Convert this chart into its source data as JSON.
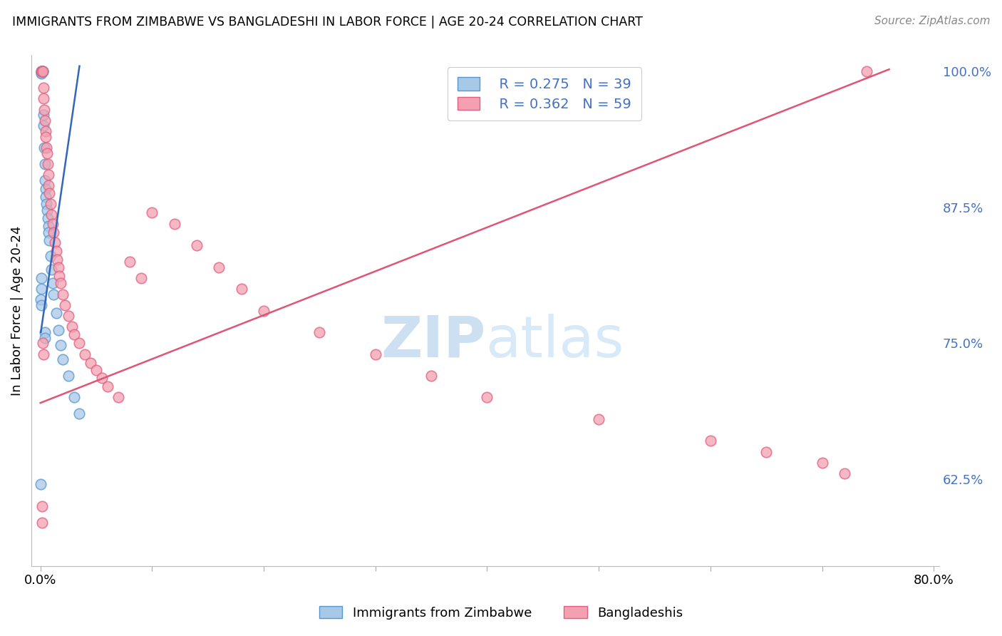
{
  "title": "IMMIGRANTS FROM ZIMBABWE VS BANGLADESHI IN LABOR FORCE | AGE 20-24 CORRELATION CHART",
  "source": "Source: ZipAtlas.com",
  "ylabel": "In Labor Force | Age 20-24",
  "xlim": [
    -0.008,
    0.805
  ],
  "ylim": [
    0.545,
    1.015
  ],
  "xticks": [
    0.0,
    0.1,
    0.2,
    0.3,
    0.4,
    0.5,
    0.6,
    0.7,
    0.8
  ],
  "xticklabels": [
    "0.0%",
    "",
    "",
    "",
    "",
    "",
    "",
    "",
    "80.0%"
  ],
  "yticks_right": [
    0.625,
    0.75,
    0.875,
    1.0
  ],
  "yticks_right_labels": [
    "62.5%",
    "75.0%",
    "87.5%",
    "100.0%"
  ],
  "blue_color": "#a8c8e8",
  "pink_color": "#f4a0b0",
  "blue_edge_color": "#5599cc",
  "pink_edge_color": "#e06080",
  "blue_line_color": "#3366bb",
  "pink_line_color": "#e05575",
  "legend_label_blue": "Immigrants from Zimbabwe",
  "legend_label_pink": "Bangladeshis",
  "watermark": "ZIPatlas",
  "blue_x": [
    0.0008,
    0.001,
    0.0012,
    0.0015,
    0.0008,
    0.0009,
    0.002,
    0.0022,
    0.0025,
    0.003,
    0.0035,
    0.004,
    0.0042,
    0.0045,
    0.005,
    0.0055,
    0.006,
    0.0065,
    0.007,
    0.0075,
    0.008,
    0.009,
    0.01,
    0.011,
    0.012,
    0.014,
    0.016,
    0.018,
    0.02,
    0.025,
    0.03,
    0.035,
    0.0038,
    0.0042,
    0.0006,
    0.0007,
    0.0005,
    0.0006,
    0.0004
  ],
  "blue_y": [
    1.0,
    1.0,
    1.0,
    1.0,
    0.999,
    0.998,
    1.0,
    1.0,
    0.96,
    0.95,
    0.93,
    0.915,
    0.9,
    0.892,
    0.885,
    0.878,
    0.872,
    0.865,
    0.858,
    0.852,
    0.845,
    0.83,
    0.818,
    0.805,
    0.795,
    0.778,
    0.762,
    0.748,
    0.735,
    0.72,
    0.7,
    0.685,
    0.76,
    0.755,
    0.81,
    0.8,
    0.79,
    0.785,
    0.62
  ],
  "pink_x": [
    0.001,
    0.0015,
    0.002,
    0.0025,
    0.003,
    0.0035,
    0.004,
    0.0045,
    0.005,
    0.0055,
    0.006,
    0.0065,
    0.007,
    0.0075,
    0.008,
    0.009,
    0.01,
    0.011,
    0.012,
    0.013,
    0.014,
    0.015,
    0.016,
    0.017,
    0.018,
    0.02,
    0.022,
    0.025,
    0.028,
    0.03,
    0.035,
    0.04,
    0.045,
    0.05,
    0.055,
    0.06,
    0.07,
    0.08,
    0.09,
    0.1,
    0.12,
    0.14,
    0.16,
    0.18,
    0.2,
    0.25,
    0.3,
    0.35,
    0.4,
    0.5,
    0.6,
    0.65,
    0.7,
    0.72,
    0.74,
    0.0015,
    0.0018,
    0.0022,
    0.0028
  ],
  "pink_y": [
    1.0,
    1.0,
    1.0,
    0.985,
    0.975,
    0.965,
    0.955,
    0.945,
    0.94,
    0.93,
    0.925,
    0.915,
    0.905,
    0.895,
    0.888,
    0.878,
    0.868,
    0.86,
    0.852,
    0.843,
    0.835,
    0.827,
    0.82,
    0.812,
    0.805,
    0.795,
    0.785,
    0.775,
    0.765,
    0.758,
    0.75,
    0.74,
    0.732,
    0.725,
    0.718,
    0.71,
    0.7,
    0.825,
    0.81,
    0.87,
    0.86,
    0.84,
    0.82,
    0.8,
    0.78,
    0.76,
    0.74,
    0.72,
    0.7,
    0.68,
    0.66,
    0.65,
    0.64,
    0.63,
    1.0,
    0.6,
    0.585,
    0.75,
    0.74
  ],
  "blue_line_x": [
    0.0004,
    0.035
  ],
  "blue_line_y": [
    0.76,
    1.005
  ],
  "pink_line_x": [
    0.0,
    0.76
  ],
  "pink_line_y": [
    0.695,
    1.002
  ]
}
